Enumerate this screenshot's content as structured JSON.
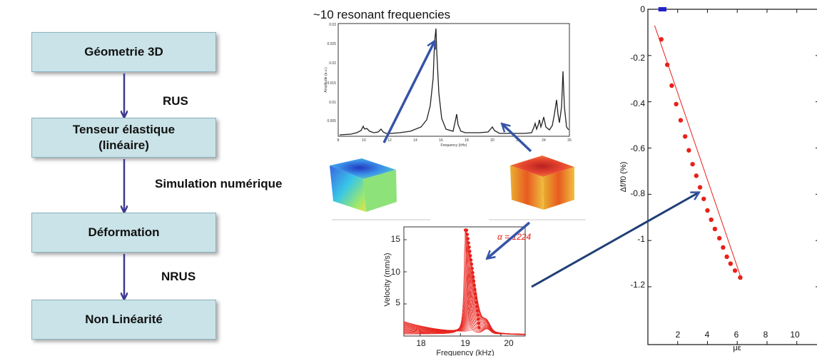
{
  "flow": {
    "boxes": [
      "Géometrie 3D",
      "Tenseur élastique\n(linéaire)",
      "Déformation",
      "Non Linéarité"
    ],
    "arrow_labels": [
      "RUS",
      "Simulation numérique",
      "NRUS"
    ]
  },
  "colors": {
    "box_fill": "#c9e3e8",
    "flow_arrow": "#3e3a8f",
    "annotation_arrow": "#3654a8",
    "curve_black": "#222222",
    "curve_red": "#e8201a",
    "blue_point": "#2222cc"
  },
  "top_spectrum": {
    "title": "~10 resonant frequencies",
    "xlabel": "Frequency (kHz)",
    "ylabel": "Amplitude (a.u.)",
    "xticks": [
      "8",
      "10",
      "12",
      "14",
      "16",
      "18",
      "20",
      "22",
      "24",
      "26"
    ],
    "yticks": [
      "0.005",
      "0.01",
      "0.015",
      "0.02",
      "0.025",
      "0.03"
    ]
  },
  "velocity_plot": {
    "xlabel": "Frequency (kHz)",
    "ylabel": "Velocity (mm/s)",
    "annotation": "α = 1224",
    "xticks": [
      "18",
      "19",
      "20"
    ],
    "yticks": [
      "5",
      "10",
      "15"
    ]
  },
  "chart_data": {
    "type": "scatter",
    "xlabel": "με",
    "ylabel": "Δf/f0 (%)",
    "xlim": [
      0,
      11.5
    ],
    "ylim": [
      -1.45,
      0
    ],
    "xticks": [
      "2",
      "4",
      "6",
      "8",
      "10"
    ],
    "yticks": [
      "0",
      "-0.2",
      "-0.4",
      "-0.6",
      "-0.8",
      "-1",
      "-1.2"
    ],
    "series": [
      {
        "points": [
          [
            0.9,
            -0.13
          ],
          [
            1.3,
            -0.24
          ],
          [
            1.6,
            -0.33
          ],
          [
            1.9,
            -0.41
          ],
          [
            2.2,
            -0.48
          ],
          [
            2.5,
            -0.55
          ],
          [
            2.75,
            -0.61
          ],
          [
            3.0,
            -0.67
          ],
          [
            3.25,
            -0.72
          ],
          [
            3.5,
            -0.77
          ],
          [
            3.75,
            -0.82
          ],
          [
            4.0,
            -0.87
          ],
          [
            4.25,
            -0.91
          ],
          [
            4.5,
            -0.95
          ],
          [
            4.8,
            -0.99
          ],
          [
            5.05,
            -1.03
          ],
          [
            5.3,
            -1.07
          ],
          [
            5.55,
            -1.1
          ],
          [
            5.85,
            -1.13
          ],
          [
            6.2,
            -1.16
          ]
        ]
      }
    ],
    "fit_line": [
      [
        0.45,
        -0.07
      ],
      [
        6.3,
        -1.17
      ]
    ],
    "blue_points": [
      [
        0.85,
        0
      ],
      [
        1.1,
        0
      ]
    ],
    "grid": false
  }
}
